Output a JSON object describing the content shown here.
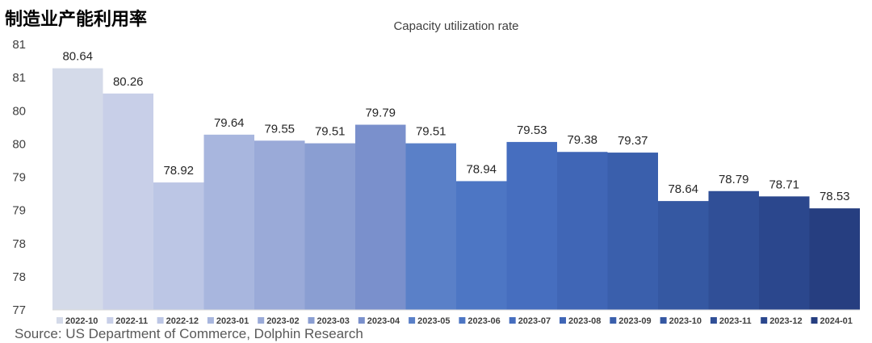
{
  "heading": "制造业产能利用率",
  "source": "Source: US Department of Commerce, Dolphin Research",
  "chart_data": {
    "type": "bar",
    "title": "Capacity utilization rate",
    "categories": [
      "2022-10",
      "2022-11",
      "2022-12",
      "2023-01",
      "2023-02",
      "2023-03",
      "2023-04",
      "2023-05",
      "2023-06",
      "2023-07",
      "2023-08",
      "2023-09",
      "2023-10",
      "2023-11",
      "2023-12",
      "2024-01"
    ],
    "values": [
      80.64,
      80.26,
      78.92,
      79.64,
      79.55,
      79.51,
      79.79,
      79.51,
      78.94,
      79.53,
      79.38,
      79.37,
      78.64,
      78.79,
      78.71,
      78.53
    ],
    "data_labels": [
      "80.64",
      "80.26",
      "78.92",
      "79.64",
      "79.55",
      "79.51",
      "79.79",
      "79.51",
      "78.94",
      "79.53",
      "79.38",
      "79.37",
      "78.64",
      "78.79",
      "78.71",
      "78.53"
    ],
    "ylim": [
      77,
      81
    ],
    "y_ticks": [
      77,
      77.5,
      78,
      78.5,
      79,
      79.5,
      80,
      80.5,
      81
    ],
    "y_tick_labels": [
      "77",
      "78",
      "78",
      "79",
      "79",
      "80",
      "80",
      "81",
      "81"
    ],
    "colors": [
      "#d4dae9",
      "#c8cfe8",
      "#bcc6e5",
      "#a8b6de",
      "#9aaad8",
      "#8a9ed2",
      "#7a90cc",
      "#5a80c8",
      "#4d76c4",
      "#466ebf",
      "#4066b6",
      "#3a5fac",
      "#3558a2",
      "#304f97",
      "#2b478d",
      "#263e80"
    ],
    "legend_position": "bottom",
    "grid": false
  }
}
